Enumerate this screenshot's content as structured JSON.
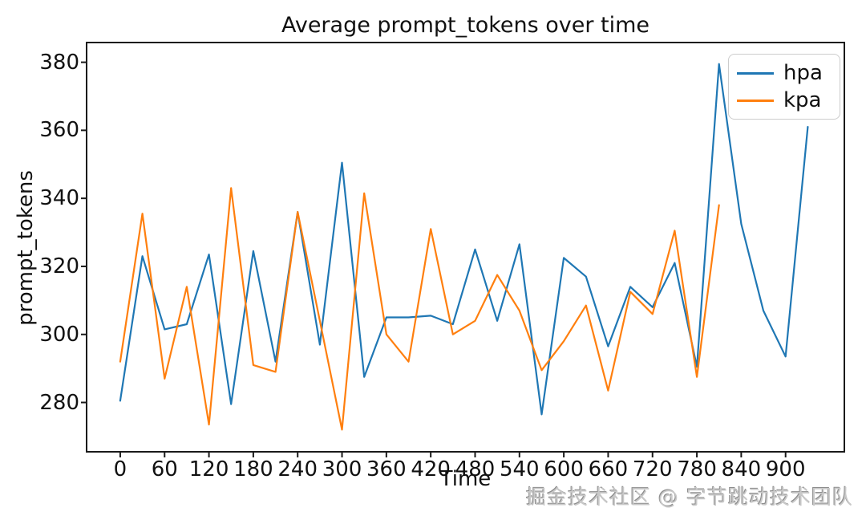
{
  "title": "Average prompt_tokens over time",
  "watermark": "掘金技术社区 @ 字节跳动技术团队",
  "legend": {
    "entries": [
      {
        "label": "hpa",
        "color": "#1f77b4"
      },
      {
        "label": "kpa",
        "color": "#ff7f0e"
      }
    ]
  },
  "chart_data": {
    "type": "line",
    "title": "Average prompt_tokens over time",
    "xlabel": "Time",
    "ylabel": "prompt_tokens",
    "legend_position": "upper right",
    "grid": false,
    "x_ticks": [
      0,
      60,
      120,
      180,
      240,
      300,
      360,
      420,
      480,
      540,
      600,
      660,
      720,
      780,
      840,
      900
    ],
    "y_ticks": [
      280,
      300,
      320,
      340,
      360,
      380
    ],
    "xlim": [
      -45.5,
      979.5
    ],
    "ylim": [
      265.5,
      385.8
    ],
    "series": [
      {
        "name": "hpa",
        "color": "#1f77b4",
        "x": [
          0,
          30,
          60,
          90,
          120,
          150,
          180,
          210,
          240,
          270,
          300,
          330,
          360,
          390,
          420,
          450,
          480,
          510,
          540,
          570,
          600,
          630,
          660,
          690,
          720,
          750,
          780,
          810,
          840,
          870,
          900,
          930
        ],
        "values": [
          280.5,
          323,
          301.5,
          303,
          323.5,
          279.5,
          324.5,
          292,
          336,
          297,
          350.5,
          287.5,
          305,
          305,
          305.5,
          303,
          325,
          304,
          326.5,
          276.5,
          322.5,
          317,
          296.5,
          314,
          308,
          321,
          290.5,
          379.5,
          332.5,
          307,
          293.5,
          361
        ]
      },
      {
        "name": "kpa",
        "color": "#ff7f0e",
        "x": [
          0,
          30,
          60,
          90,
          120,
          150,
          180,
          210,
          240,
          270,
          300,
          330,
          360,
          390,
          420,
          450,
          480,
          510,
          540,
          570,
          600,
          630,
          660,
          690,
          720,
          750,
          780,
          810
        ],
        "values": [
          292,
          335.5,
          287,
          314,
          273.5,
          343,
          291,
          289,
          336,
          304,
          272,
          341.5,
          300,
          292,
          331,
          300,
          304,
          317.5,
          307,
          289.5,
          298,
          308.5,
          283.5,
          312.5,
          306,
          330.5,
          287.5,
          338
        ]
      }
    ]
  }
}
